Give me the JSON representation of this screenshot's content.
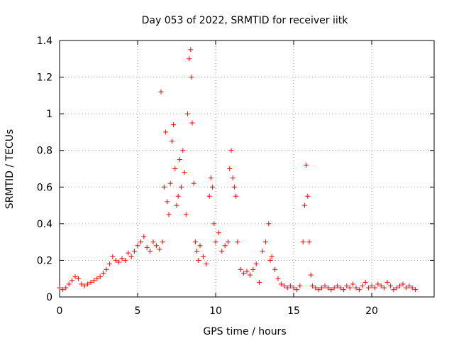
{
  "chart_data": {
    "type": "scatter",
    "title": "Day 053 of 2022, SRMTID for receiver iitk",
    "xlabel": "GPS time / hours",
    "ylabel": "SRMTID / TECUs",
    "xlim": [
      0,
      24
    ],
    "ylim": [
      0,
      1.4
    ],
    "xticks": [
      0,
      5,
      10,
      15,
      20
    ],
    "yticks": [
      0,
      0.2,
      0.4,
      0.6,
      0.8,
      1,
      1.2,
      1.4
    ],
    "xtick_labels": [
      "0",
      "5",
      "10",
      "15",
      "20"
    ],
    "ytick_labels": [
      "0",
      "0.2",
      "0.4",
      "0.6",
      "0.8",
      "1",
      "1.2",
      "1.4"
    ],
    "grid": true,
    "marker": "+",
    "series": [
      {
        "name": "SRMTID",
        "color": "#ff0000",
        "x": [
          0.0,
          0.2,
          0.4,
          0.6,
          0.8,
          1.0,
          1.2,
          1.4,
          1.6,
          1.8,
          2.0,
          2.2,
          2.4,
          2.6,
          2.8,
          3.0,
          3.2,
          3.4,
          3.6,
          3.8,
          4.0,
          4.2,
          4.4,
          4.6,
          4.8,
          5.0,
          5.2,
          5.4,
          5.6,
          5.8,
          6.0,
          6.2,
          6.4,
          6.5,
          6.6,
          6.7,
          6.8,
          6.9,
          7.0,
          7.1,
          7.2,
          7.3,
          7.4,
          7.5,
          7.6,
          7.7,
          7.8,
          7.9,
          8.0,
          8.1,
          8.2,
          8.3,
          8.4,
          8.45,
          8.5,
          8.6,
          8.7,
          8.8,
          8.9,
          9.0,
          9.2,
          9.4,
          9.6,
          9.7,
          9.8,
          9.9,
          10.0,
          10.2,
          10.4,
          10.6,
          10.8,
          10.9,
          11.0,
          11.1,
          11.2,
          11.3,
          11.4,
          11.6,
          11.8,
          12.0,
          12.2,
          12.4,
          12.6,
          12.8,
          13.0,
          13.2,
          13.4,
          13.5,
          13.6,
          13.8,
          14.0,
          14.2,
          14.4,
          14.6,
          14.8,
          15.0,
          15.2,
          15.4,
          15.6,
          15.7,
          15.8,
          15.9,
          16.0,
          16.1,
          16.2,
          16.4,
          16.6,
          16.8,
          17.0,
          17.2,
          17.4,
          17.6,
          17.8,
          18.0,
          18.2,
          18.4,
          18.6,
          18.8,
          19.0,
          19.2,
          19.4,
          19.6,
          19.8,
          20.0,
          20.2,
          20.4,
          20.6,
          20.8,
          21.0,
          21.2,
          21.4,
          21.6,
          21.8,
          22.0,
          22.2,
          22.4,
          22.6,
          22.8
        ],
        "y": [
          0.05,
          0.04,
          0.05,
          0.07,
          0.09,
          0.11,
          0.1,
          0.07,
          0.06,
          0.07,
          0.08,
          0.09,
          0.1,
          0.11,
          0.13,
          0.15,
          0.18,
          0.22,
          0.2,
          0.19,
          0.21,
          0.2,
          0.24,
          0.22,
          0.25,
          0.28,
          0.3,
          0.33,
          0.27,
          0.25,
          0.3,
          0.28,
          0.26,
          1.12,
          0.3,
          0.6,
          0.9,
          0.52,
          0.45,
          0.62,
          0.85,
          0.94,
          0.7,
          0.5,
          0.55,
          0.75,
          0.6,
          0.8,
          0.68,
          0.45,
          1.0,
          1.3,
          1.35,
          1.2,
          0.95,
          0.62,
          0.3,
          0.25,
          0.2,
          0.28,
          0.22,
          0.18,
          0.55,
          0.65,
          0.6,
          0.4,
          0.3,
          0.35,
          0.25,
          0.28,
          0.3,
          0.7,
          0.8,
          0.65,
          0.6,
          0.55,
          0.3,
          0.15,
          0.13,
          0.14,
          0.12,
          0.15,
          0.18,
          0.08,
          0.25,
          0.3,
          0.4,
          0.2,
          0.22,
          0.15,
          0.1,
          0.07,
          0.06,
          0.05,
          0.06,
          0.05,
          0.04,
          0.06,
          0.3,
          0.5,
          0.72,
          0.55,
          0.3,
          0.12,
          0.06,
          0.05,
          0.04,
          0.05,
          0.06,
          0.05,
          0.04,
          0.05,
          0.06,
          0.05,
          0.04,
          0.06,
          0.05,
          0.07,
          0.05,
          0.04,
          0.06,
          0.08,
          0.05,
          0.06,
          0.05,
          0.07,
          0.06,
          0.05,
          0.08,
          0.06,
          0.04,
          0.05,
          0.06,
          0.07,
          0.05,
          0.06,
          0.05,
          0.04
        ]
      }
    ]
  }
}
